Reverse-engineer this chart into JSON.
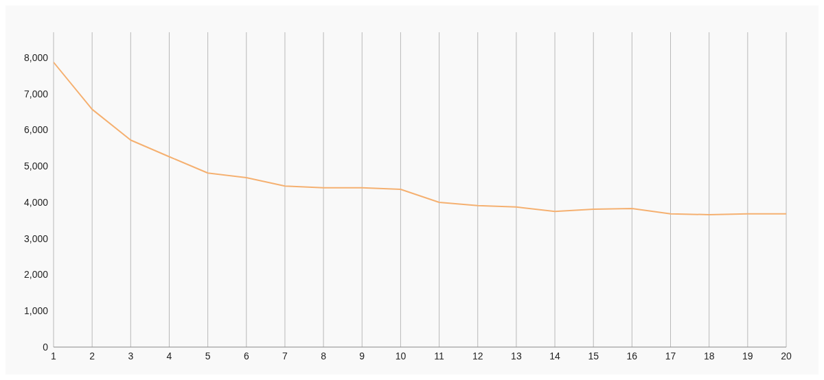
{
  "chart_data": {
    "type": "line",
    "x": [
      1,
      2,
      3,
      4,
      5,
      6,
      7,
      8,
      9,
      10,
      11,
      12,
      13,
      14,
      15,
      16,
      17,
      18,
      19,
      20
    ],
    "series": [
      {
        "color": "#f5b070",
        "values": [
          7870,
          6570,
          5720,
          5260,
          4810,
          4680,
          4450,
          4400,
          4400,
          4360,
          4000,
          3910,
          3870,
          3750,
          3810,
          3830,
          3680,
          3660,
          3680,
          3680
        ]
      }
    ],
    "xlim": [
      1,
      20
    ],
    "xticks": [
      1,
      2,
      3,
      4,
      5,
      6,
      7,
      8,
      9,
      10,
      11,
      12,
      13,
      14,
      15,
      16,
      17,
      18,
      19,
      20
    ],
    "ylim": [
      0,
      8700
    ],
    "yticks": [
      0,
      {
        "value": 1000,
        "label": "1,000"
      },
      {
        "value": 2000,
        "label": "2,000"
      },
      {
        "value": 3000,
        "label": "3,000"
      },
      {
        "value": 4000,
        "label": "4,000"
      },
      {
        "value": 5000,
        "label": "5,000"
      },
      {
        "value": 6000,
        "label": "6,000"
      },
      {
        "value": 7000,
        "label": "7,000"
      },
      {
        "value": 8000,
        "label": "8,000"
      }
    ],
    "grid": "x",
    "marker": "none",
    "line_style": "solid"
  }
}
